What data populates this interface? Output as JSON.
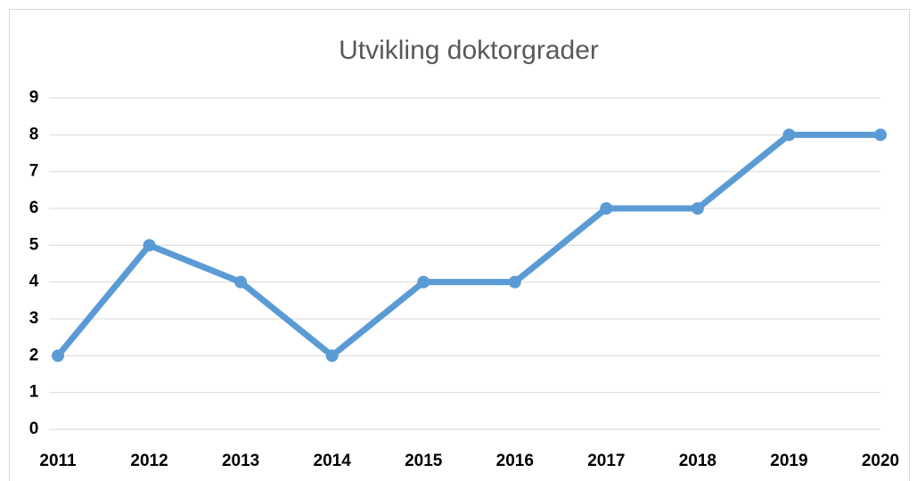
{
  "chart_data": {
    "type": "line",
    "title": "Utvikling doktorgrader",
    "categories": [
      "2011",
      "2012",
      "2013",
      "2014",
      "2015",
      "2016",
      "2017",
      "2018",
      "2019",
      "2020"
    ],
    "values": [
      2,
      5,
      4,
      2,
      4,
      4,
      6,
      6,
      8,
      8
    ],
    "color": "#5b9bd5",
    "ylim": [
      0,
      9
    ],
    "yticks": [
      0,
      1,
      2,
      3,
      4,
      5,
      6,
      7,
      8,
      9
    ],
    "grid": true
  }
}
